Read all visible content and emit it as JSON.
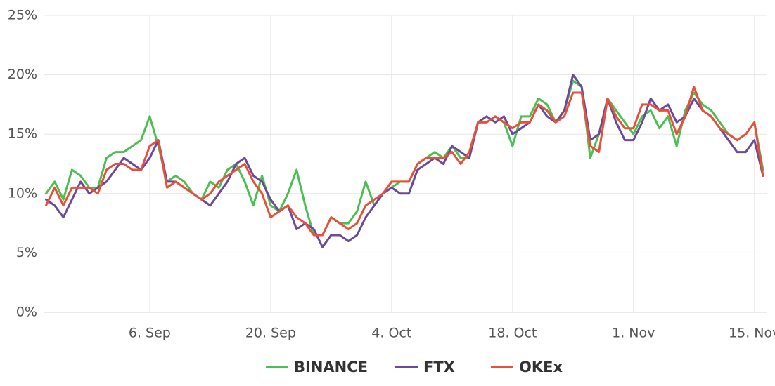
{
  "chart_data": {
    "type": "line",
    "categories": [
      null,
      null,
      null,
      null,
      null,
      null,
      null,
      null,
      null,
      null,
      null,
      null,
      "6. Sep",
      null,
      null,
      null,
      null,
      null,
      null,
      null,
      null,
      null,
      null,
      null,
      null,
      null,
      "20. Sep",
      null,
      null,
      null,
      null,
      null,
      null,
      null,
      null,
      null,
      null,
      null,
      null,
      null,
      "4. Oct",
      null,
      null,
      null,
      null,
      null,
      null,
      null,
      null,
      null,
      null,
      null,
      null,
      null,
      "18. Oct",
      null,
      null,
      null,
      null,
      null,
      null,
      null,
      null,
      null,
      null,
      null,
      null,
      null,
      "1. Nov",
      null,
      null,
      null,
      null,
      null,
      null,
      null,
      null,
      null,
      null,
      null,
      null,
      null,
      "15. Nov",
      null
    ],
    "series": [
      {
        "name": "BINANCE",
        "color": "#4cbf52",
        "values": [
          10,
          11,
          9.5,
          12,
          11.5,
          10.5,
          10.5,
          13,
          13.5,
          13.5,
          14,
          14.5,
          16.5,
          14,
          11,
          11.5,
          11,
          10,
          9.5,
          11,
          10.5,
          12,
          12.5,
          11,
          9,
          11.5,
          9,
          8.5,
          10,
          12,
          9,
          6.5,
          6.5,
          8,
          7.5,
          7.5,
          8.5,
          11,
          9,
          10,
          10.5,
          11,
          11,
          12.5,
          13,
          13.5,
          13,
          14,
          13,
          13,
          16,
          16,
          16.5,
          16,
          14,
          16.5,
          16.5,
          18,
          17.5,
          16,
          17,
          19.5,
          19,
          13,
          15,
          18,
          17,
          16,
          15,
          16.5,
          17,
          15.5,
          16.5,
          14,
          17,
          18.5,
          17.5,
          17,
          16,
          15,
          14.5,
          15,
          16,
          12
        ]
      },
      {
        "name": "FTX",
        "color": "#6b4a9b",
        "values": [
          9.5,
          9,
          8,
          9.5,
          11,
          10,
          10.5,
          11,
          12,
          13,
          12.5,
          12,
          13,
          14.5,
          11,
          11,
          10.5,
          10,
          9.5,
          9,
          10,
          11,
          12.5,
          13,
          11.5,
          11,
          9.5,
          8.5,
          9,
          7,
          7.5,
          7,
          5.5,
          6.5,
          6.5,
          6,
          6.5,
          8,
          9,
          10,
          10.5,
          10,
          10,
          12,
          12.5,
          13,
          12.5,
          14,
          13.5,
          13,
          16,
          16.5,
          16,
          16.5,
          15,
          15.5,
          16,
          17.5,
          16.5,
          16,
          17,
          20,
          19,
          14.5,
          15,
          18,
          16,
          14.5,
          14.5,
          16,
          18,
          17,
          17.5,
          16,
          16.5,
          18,
          17,
          16.5,
          15.5,
          14.5,
          13.5,
          13.5,
          14.5,
          11.5
        ]
      },
      {
        "name": "OKEx",
        "color": "#e9503a",
        "values": [
          9,
          10.5,
          9,
          10.5,
          10.5,
          10.5,
          10,
          12,
          12.5,
          12.5,
          12,
          12,
          14,
          14.5,
          10.5,
          11,
          10.5,
          10,
          9.5,
          10,
          11,
          11.5,
          12,
          12.5,
          11,
          10,
          8,
          8.5,
          9,
          8,
          7.5,
          6.5,
          6.5,
          8,
          7.5,
          7,
          7.5,
          9,
          9.5,
          10,
          11,
          11,
          11,
          12.5,
          13,
          13,
          13,
          13.5,
          12.5,
          13.5,
          16,
          16,
          16.5,
          16,
          15.5,
          16,
          16,
          17.5,
          17,
          16,
          16.5,
          18.5,
          18.5,
          14,
          13.5,
          18,
          16.5,
          15.5,
          15.5,
          17.5,
          17.5,
          17,
          17,
          15,
          16.5,
          19,
          17,
          16.5,
          15.5,
          15,
          14.5,
          15,
          16,
          11.5
        ]
      }
    ],
    "ylim": [
      0,
      25
    ],
    "yticks": [
      {
        "value": 0,
        "label": "0%"
      },
      {
        "value": 5,
        "label": "5%"
      },
      {
        "value": 10,
        "label": "10%"
      },
      {
        "value": 15,
        "label": "15%"
      },
      {
        "value": 20,
        "label": "20%"
      },
      {
        "value": 25,
        "label": "25%"
      }
    ],
    "grid": true,
    "legend": "bottom"
  }
}
